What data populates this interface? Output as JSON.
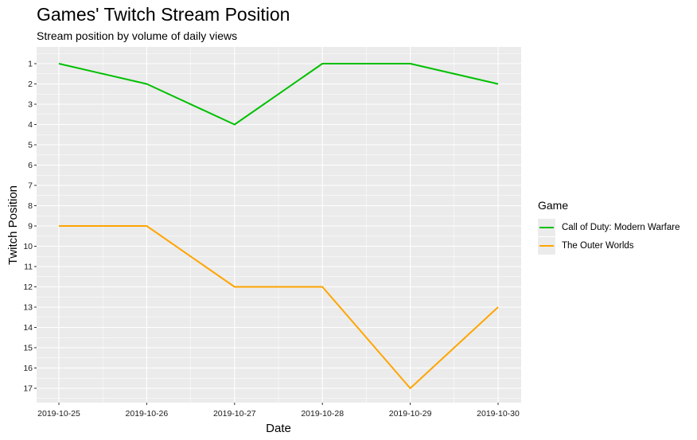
{
  "chart_data": {
    "type": "line",
    "title": "Games' Twitch Stream Position",
    "subtitle": "Stream position by volume of daily views",
    "xlabel": "Date",
    "ylabel": "Twitch Position",
    "x": [
      "2019-10-25",
      "2019-10-26",
      "2019-10-27",
      "2019-10-28",
      "2019-10-29",
      "2019-10-30"
    ],
    "y_ticks": [
      1,
      2,
      3,
      4,
      5,
      6,
      7,
      8,
      9,
      10,
      11,
      12,
      13,
      14,
      15,
      16,
      17
    ],
    "ylim": [
      1,
      17
    ],
    "y_reversed": true,
    "grid": true,
    "legend": {
      "title": "Game",
      "position": "right"
    },
    "series": [
      {
        "name": "Call of Duty: Modern Warfare",
        "color": "#00c000",
        "values": [
          1,
          2,
          4,
          1,
          1,
          2
        ]
      },
      {
        "name": "The Outer Worlds",
        "color": "#ffa500",
        "values": [
          9,
          9,
          12,
          12,
          17,
          13
        ]
      }
    ]
  }
}
